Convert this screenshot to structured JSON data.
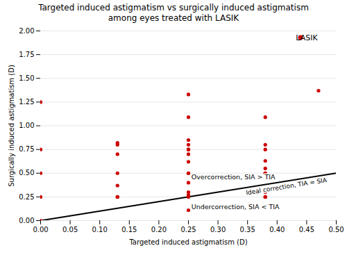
{
  "chart_data": {
    "type": "scatter",
    "title": "Targeted induced astigmatism vs surgically induced astigmatism\namong eyes treated with LASIK",
    "xlabel": "Targeted induced astigmatism (D)",
    "ylabel": "Surgically induced astigmatism (D)",
    "xlim": [
      0.0,
      0.5
    ],
    "ylim": [
      0.0,
      2.0
    ],
    "xticks": [
      {
        "value": 0.0,
        "label": "0.00"
      },
      0.05,
      {
        "value": 0.1,
        "label": "0.10"
      },
      0.15,
      {
        "value": 0.2,
        "label": "0.20"
      },
      0.25,
      {
        "value": 0.3,
        "label": "0.30"
      },
      0.35,
      {
        "value": 0.4,
        "label": "0.40"
      },
      0.45,
      {
        "value": 0.5,
        "label": "0.50"
      }
    ],
    "yticks": [
      {
        "value": 0.0,
        "label": "0.00"
      },
      0.25,
      {
        "value": 0.5,
        "label": "0.50"
      },
      0.75,
      {
        "value": 1.0,
        "label": "1.00"
      },
      1.25,
      {
        "value": 1.5,
        "label": "1.50"
      },
      1.75,
      {
        "value": 2.0,
        "label": "2.00"
      }
    ],
    "grid": "y",
    "legend": "upper right",
    "series": [
      {
        "name": "LASIK",
        "type": "scatter",
        "color": "#cc0000",
        "marker": "circle",
        "x": [
          0.0,
          0.0,
          0.0,
          0.0,
          0.0,
          0.13,
          0.13,
          0.13,
          0.13,
          0.13,
          0.13,
          0.13,
          0.25,
          0.25,
          0.25,
          0.25,
          0.25,
          0.25,
          0.25,
          0.25,
          0.25,
          0.25,
          0.25,
          0.25,
          0.25,
          0.25,
          0.25,
          0.38,
          0.38,
          0.38,
          0.38,
          0.38,
          0.38,
          0.38,
          0.38,
          0.38,
          0.38,
          0.47
        ],
        "values": [
          0.0,
          0.25,
          0.5,
          0.75,
          1.25,
          0.25,
          0.25,
          0.37,
          0.5,
          0.7,
          0.8,
          0.82,
          0.11,
          0.25,
          0.27,
          0.3,
          0.4,
          0.5,
          0.5,
          0.62,
          0.7,
          0.75,
          0.75,
          0.8,
          0.85,
          1.09,
          1.33,
          0.25,
          0.25,
          0.3,
          0.5,
          0.5,
          0.55,
          0.63,
          0.75,
          0.8,
          1.09,
          1.37
        ]
      },
      {
        "type": "line",
        "color": "black",
        "line_style": "solid",
        "x": [
          0.0,
          0.5
        ],
        "values": [
          0.0,
          0.5
        ]
      }
    ],
    "annotations": [
      {
        "text": "Overcorrection, SIA > TIA",
        "x": 0.255,
        "y": 0.46
      },
      {
        "text": "Undercorrection, SIA < TIA",
        "x": 0.255,
        "y": 0.14
      },
      {
        "text": "Ideal correction, TIA = SIA",
        "x": 0.415,
        "y": 0.385
      }
    ]
  }
}
